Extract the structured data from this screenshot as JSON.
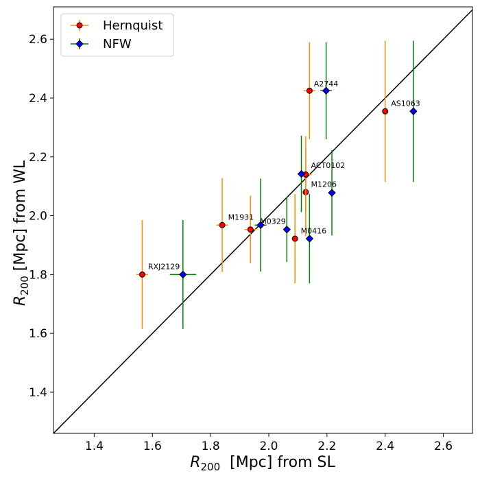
{
  "chart_data": {
    "type": "scatter",
    "title": "",
    "xlabel": {
      "symbol": "R",
      "subscript": "200",
      "rest": "  [Mpc] from SL"
    },
    "ylabel": {
      "symbol": "R",
      "subscript": "200",
      "rest": " [Mpc] from WL"
    },
    "xlim": [
      1.26,
      2.7
    ],
    "ylim": [
      1.26,
      2.71
    ],
    "xticks": [
      1.4,
      1.6,
      1.8,
      2.0,
      2.2,
      2.4,
      2.6
    ],
    "yticks": [
      1.4,
      1.6,
      1.8,
      2.0,
      2.2,
      2.4,
      2.6
    ],
    "xtick_labels": [
      "1.4",
      "1.6",
      "1.8",
      "2.0",
      "2.2",
      "2.4",
      "2.6"
    ],
    "ytick_labels": [
      "1.4",
      "1.6",
      "1.8",
      "2.0",
      "2.2",
      "2.4",
      "2.6"
    ],
    "grid": false,
    "legend_position": "top-left",
    "one_to_one_line": true,
    "series": [
      {
        "name": "Hernquist",
        "marker": "circle",
        "color": "#ff0000",
        "errorbar_color": "#ff8c00",
        "points": [
          {
            "x": 1.565,
            "y": 1.8,
            "xerr": 0.02,
            "yerr": 0.185
          },
          {
            "x": 1.84,
            "y": 1.968,
            "xerr": 0.02,
            "yerr": 0.16
          },
          {
            "x": 1.937,
            "y": 1.953,
            "xerr": 0.02,
            "yerr": 0.115
          },
          {
            "x": 2.09,
            "y": 1.922,
            "xerr": 0.0,
            "yerr": 0.152
          },
          {
            "x": 2.127,
            "y": 2.08,
            "xerr": 0.0,
            "yerr": 0.15
          },
          {
            "x": 2.127,
            "y": 2.14,
            "xerr": 0.02,
            "yerr": 0.13
          },
          {
            "x": 2.14,
            "y": 2.425,
            "xerr": 0.02,
            "yerr": 0.165
          },
          {
            "x": 2.4,
            "y": 2.355,
            "xerr": 0.0,
            "yerr": 0.24
          }
        ]
      },
      {
        "name": "NFW",
        "marker": "diamond",
        "color": "#0000ff",
        "errorbar_color": "#008000",
        "points": [
          {
            "x": 1.705,
            "y": 1.8,
            "xerr": 0.045,
            "yerr": 0.185
          },
          {
            "x": 1.972,
            "y": 1.968,
            "xerr": 0.02,
            "yerr": 0.158
          },
          {
            "x": 2.062,
            "y": 1.953,
            "xerr": 0.0,
            "yerr": 0.11
          },
          {
            "x": 2.14,
            "y": 1.922,
            "xerr": 0.0,
            "yerr": 0.152
          },
          {
            "x": 2.217,
            "y": 2.078,
            "xerr": 0.0,
            "yerr": 0.145
          },
          {
            "x": 2.112,
            "y": 2.142,
            "xerr": 0.0,
            "yerr": 0.13
          },
          {
            "x": 2.197,
            "y": 2.425,
            "xerr": 0.02,
            "yerr": 0.165
          },
          {
            "x": 2.497,
            "y": 2.355,
            "xerr": 0.0,
            "yerr": 0.24
          }
        ]
      }
    ],
    "annotations": [
      {
        "text": "RXJ2129",
        "x": 1.585,
        "y": 1.818
      },
      {
        "text": "M1931",
        "x": 1.86,
        "y": 1.986
      },
      {
        "text": "M0329",
        "x": 1.97,
        "y": 1.972
      },
      {
        "text": "M0416",
        "x": 2.11,
        "y": 1.94
      },
      {
        "text": "M1206",
        "x": 2.145,
        "y": 2.098
      },
      {
        "text": "ACT0102",
        "x": 2.145,
        "y": 2.162
      },
      {
        "text": "A2744",
        "x": 2.155,
        "y": 2.44
      },
      {
        "text": "AS1063",
        "x": 2.42,
        "y": 2.373
      }
    ],
    "legend": [
      {
        "label": "Hernquist",
        "marker": "circle"
      },
      {
        "label": "NFW",
        "marker": "diamond"
      }
    ]
  }
}
